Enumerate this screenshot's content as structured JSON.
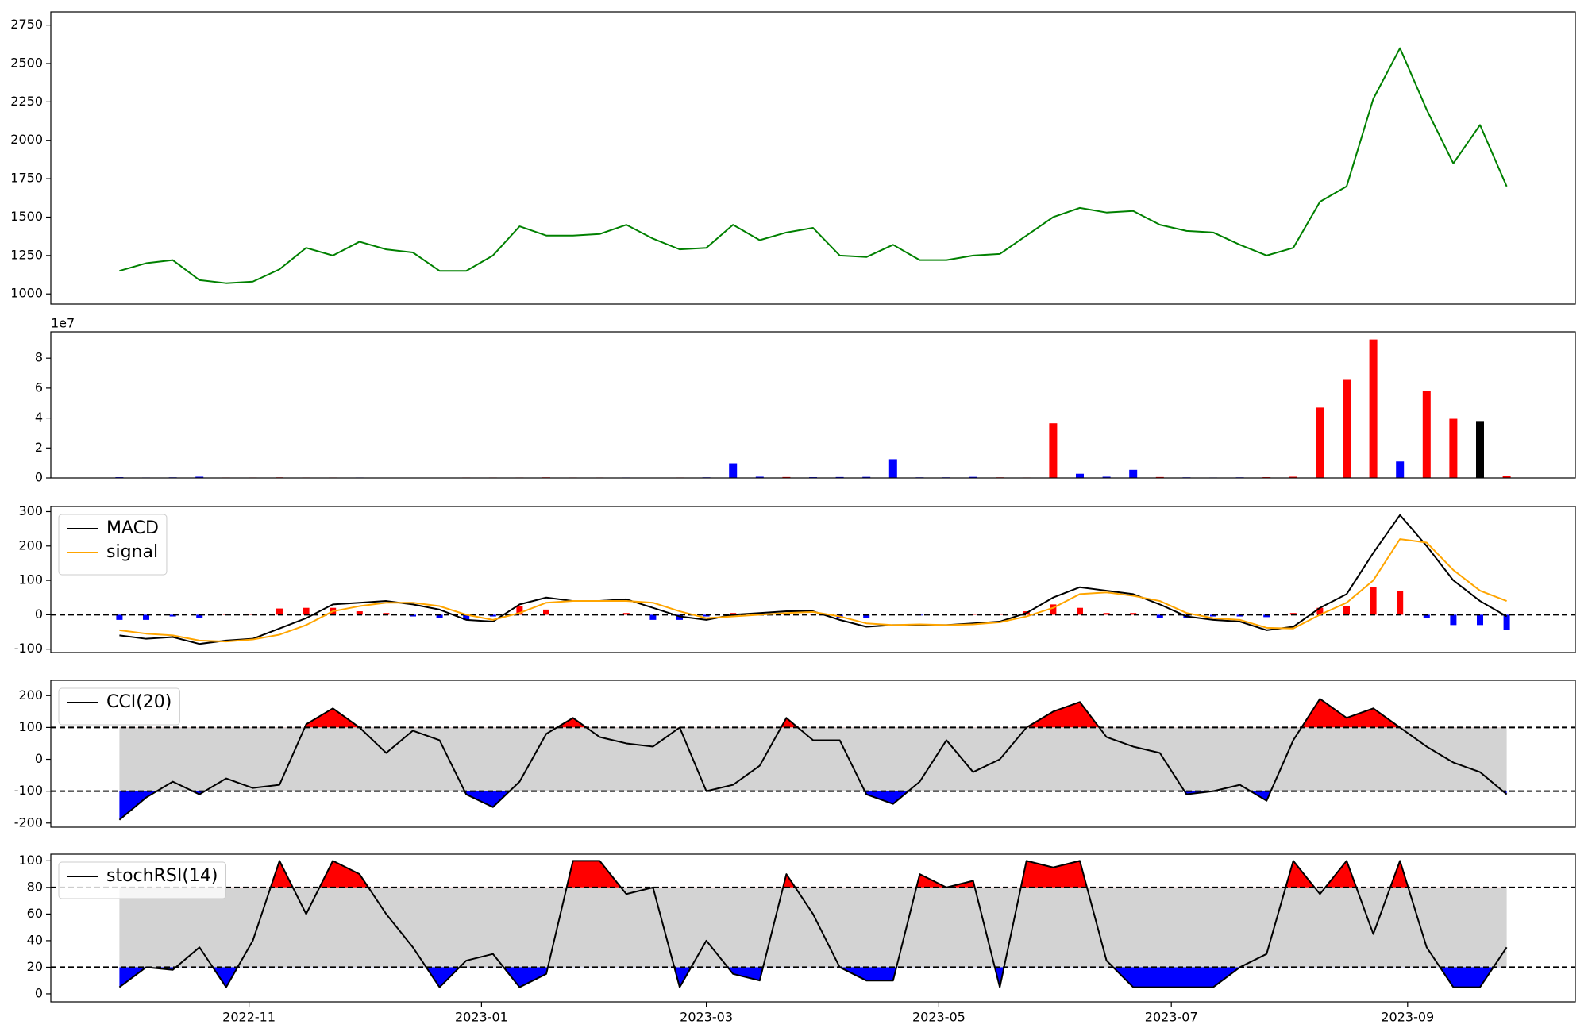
{
  "chart_data": [
    {
      "type": "line",
      "x": [
        19263,
        19270,
        19277,
        19284,
        19291,
        19298,
        19305,
        19312,
        19319,
        19326,
        19333,
        19340,
        19347,
        19354,
        19361,
        19368,
        19375,
        19382,
        19389,
        19396,
        19403,
        19410,
        19417,
        19424,
        19431,
        19438,
        19445,
        19452,
        19459,
        19466,
        19473,
        19480,
        19487,
        19494,
        19501,
        19508,
        19515,
        19522,
        19529,
        19536,
        19543,
        19550,
        19557,
        19564,
        19571,
        19578,
        19585,
        19592,
        19599,
        19606,
        19613,
        19620,
        19627
      ],
      "xlim": [
        19245,
        19645
      ],
      "series": [
        {
          "color": "#008000",
          "values": [
            1150,
            1200,
            1220,
            1090,
            1070,
            1080,
            1160,
            1300,
            1250,
            1340,
            1290,
            1270,
            1150,
            1150,
            1250,
            1440,
            1380,
            1380,
            1390,
            1450,
            1360,
            1290,
            1300,
            1450,
            1350,
            1400,
            1430,
            1250,
            1240,
            1320,
            1220,
            1220,
            1250,
            1260,
            1380,
            1500,
            1560,
            1530,
            1540,
            1450,
            1410,
            1400,
            1320,
            1250,
            1300,
            1600,
            1700,
            2270,
            2600,
            2200,
            1850,
            2100,
            1700
          ]
        }
      ],
      "ylim": [
        934,
        2836
      ],
      "yticks": [
        1000,
        1250,
        1500,
        1750,
        2000,
        2250,
        2500,
        2750
      ]
    },
    {
      "type": "bar",
      "x": [
        19263,
        19270,
        19277,
        19284,
        19291,
        19298,
        19305,
        19312,
        19319,
        19326,
        19333,
        19340,
        19347,
        19354,
        19361,
        19368,
        19375,
        19382,
        19389,
        19396,
        19403,
        19410,
        19417,
        19424,
        19431,
        19438,
        19445,
        19452,
        19459,
        19466,
        19473,
        19480,
        19487,
        19494,
        19501,
        19508,
        19515,
        19522,
        19529,
        19536,
        19543,
        19550,
        19557,
        19564,
        19571,
        19578,
        19585,
        19592,
        19599,
        19606,
        19613,
        19620,
        19627
      ],
      "xlim": [
        19245,
        19645
      ],
      "values": [
        500000,
        300000,
        400000,
        800000,
        300000,
        300000,
        400000,
        300000,
        300000,
        300000,
        200000,
        200000,
        200000,
        300000,
        300000,
        300000,
        400000,
        300000,
        300000,
        300000,
        200000,
        300000,
        400000,
        9800000,
        800000,
        600000,
        500000,
        600000,
        700000,
        12500000,
        400000,
        400000,
        700000,
        400000,
        300000,
        36500000,
        2800000,
        800000,
        5400000,
        600000,
        400000,
        300000,
        400000,
        500000,
        800000,
        47000000,
        65500000,
        92500000,
        11000000,
        58000000,
        39500000,
        38000000,
        1500000
      ],
      "colors": [
        "blue",
        "blue",
        "blue",
        "blue",
        "red",
        "red",
        "red",
        "red",
        "red",
        "blue",
        "red",
        "blue",
        "red",
        "red",
        "red",
        "red",
        "red",
        "red",
        "red",
        "blue",
        "red",
        "red",
        "blue",
        "blue",
        "blue",
        "red",
        "blue",
        "blue",
        "blue",
        "blue",
        "blue",
        "blue",
        "blue",
        "red",
        "red",
        "red",
        "blue",
        "blue",
        "blue",
        "red",
        "blue",
        "blue",
        "blue",
        "red",
        "red",
        "red",
        "red",
        "red",
        "blue",
        "red",
        "red",
        "black",
        "red"
      ],
      "ylim": [
        0,
        97600000
      ],
      "yticks": [
        {
          "value": 0,
          "label": "0"
        },
        {
          "value": 20000000,
          "label": "2"
        },
        {
          "value": 40000000,
          "label": "4"
        },
        {
          "value": 60000000,
          "label": "6"
        },
        {
          "value": 80000000,
          "label": "8"
        }
      ],
      "y_offset_label": "1e7"
    },
    {
      "type": "macd",
      "x": [
        19263,
        19270,
        19277,
        19284,
        19291,
        19298,
        19305,
        19312,
        19319,
        19326,
        19333,
        19340,
        19347,
        19354,
        19361,
        19368,
        19375,
        19382,
        19389,
        19396,
        19403,
        19410,
        19417,
        19424,
        19431,
        19438,
        19445,
        19452,
        19459,
        19466,
        19473,
        19480,
        19487,
        19494,
        19501,
        19508,
        19515,
        19522,
        19529,
        19536,
        19543,
        19550,
        19557,
        19564,
        19571,
        19578,
        19585,
        19592,
        19599,
        19606,
        19613,
        19620,
        19627
      ],
      "xlim": [
        19245,
        19645
      ],
      "series": [
        {
          "name": "MACD",
          "color": "#000000",
          "values": [
            -60,
            -70,
            -65,
            -85,
            -75,
            -70,
            -40,
            -10,
            30,
            35,
            40,
            30,
            15,
            -15,
            -20,
            30,
            50,
            40,
            40,
            45,
            20,
            -5,
            -15,
            0,
            5,
            10,
            10,
            -15,
            -35,
            -30,
            -30,
            -30,
            -25,
            -20,
            5,
            50,
            80,
            70,
            60,
            30,
            -5,
            -15,
            -20,
            -45,
            -35,
            20,
            60,
            180,
            290,
            200,
            100,
            40,
            -5
          ]
        },
        {
          "name": "signal",
          "color": "#ffa500",
          "values": [
            -45,
            -55,
            -60,
            -75,
            -78,
            -72,
            -58,
            -30,
            10,
            25,
            35,
            35,
            25,
            0,
            -15,
            5,
            35,
            40,
            40,
            40,
            35,
            10,
            -10,
            -5,
            0,
            5,
            8,
            -5,
            -25,
            -30,
            -28,
            -30,
            -28,
            -22,
            -5,
            20,
            60,
            65,
            55,
            40,
            5,
            -10,
            -15,
            -38,
            -40,
            0,
            35,
            100,
            220,
            210,
            130,
            70,
            40
          ]
        }
      ],
      "histogram": {
        "values": [
          -15,
          -15,
          -5,
          -10,
          3,
          2,
          18,
          20,
          20,
          10,
          5,
          -5,
          -10,
          -15,
          -5,
          25,
          15,
          0,
          0,
          5,
          -15,
          -15,
          -5,
          5,
          5,
          5,
          2,
          -10,
          -10,
          0,
          -2,
          0,
          3,
          2,
          10,
          30,
          20,
          5,
          5,
          -10,
          -10,
          -5,
          -5,
          -7,
          5,
          20,
          25,
          80,
          70,
          -10,
          -30,
          -30,
          -45
        ],
        "up_color": "red",
        "down_color": "blue"
      },
      "hlines": [
        0
      ],
      "ylim": [
        -110,
        315
      ],
      "yticks": [
        -100,
        0,
        100,
        200,
        300
      ],
      "legend": "upper left"
    },
    {
      "type": "oscillator",
      "x": [
        19263,
        19270,
        19277,
        19284,
        19291,
        19298,
        19305,
        19312,
        19319,
        19326,
        19333,
        19340,
        19347,
        19354,
        19361,
        19368,
        19375,
        19382,
        19389,
        19396,
        19403,
        19410,
        19417,
        19424,
        19431,
        19438,
        19445,
        19452,
        19459,
        19466,
        19473,
        19480,
        19487,
        19494,
        19501,
        19508,
        19515,
        19522,
        19529,
        19536,
        19543,
        19550,
        19557,
        19564,
        19571,
        19578,
        19585,
        19592,
        19599,
        19606,
        19613,
        19620,
        19627
      ],
      "xlim": [
        19245,
        19645
      ],
      "series": [
        {
          "name": "CCI(20)",
          "color": "#000000",
          "values": [
            -190,
            -120,
            -70,
            -110,
            -60,
            -90,
            -80,
            110,
            160,
            100,
            20,
            90,
            60,
            -110,
            -150,
            -70,
            80,
            130,
            70,
            50,
            40,
            100,
            -100,
            -80,
            -20,
            130,
            60,
            60,
            -110,
            -140,
            -70,
            60,
            -40,
            0,
            100,
            150,
            180,
            70,
            40,
            20,
            -110,
            -100,
            -80,
            -130,
            60,
            190,
            130,
            160,
            100,
            40,
            -10,
            -40,
            -110
          ]
        }
      ],
      "thresholds": [
        -100,
        100
      ],
      "band_color": "#d3d3d3",
      "above_color": "red",
      "below_color": "blue",
      "ylim": [
        -213,
        248
      ],
      "yticks": [
        -200,
        -100,
        0,
        100,
        200
      ],
      "legend": "upper left"
    },
    {
      "type": "oscillator",
      "x": [
        19263,
        19270,
        19277,
        19284,
        19291,
        19298,
        19305,
        19312,
        19319,
        19326,
        19333,
        19340,
        19347,
        19354,
        19361,
        19368,
        19375,
        19382,
        19389,
        19396,
        19403,
        19410,
        19417,
        19424,
        19431,
        19438,
        19445,
        19452,
        19459,
        19466,
        19473,
        19480,
        19487,
        19494,
        19501,
        19508,
        19515,
        19522,
        19529,
        19536,
        19543,
        19550,
        19557,
        19564,
        19571,
        19578,
        19585,
        19592,
        19599,
        19606,
        19613,
        19620,
        19627
      ],
      "xlim": [
        19245,
        19645
      ],
      "series": [
        {
          "name": "stochRSI(14)",
          "color": "#000000",
          "values": [
            5,
            20,
            18,
            35,
            5,
            40,
            100,
            60,
            100,
            90,
            60,
            35,
            5,
            25,
            30,
            5,
            15,
            100,
            100,
            75,
            80,
            5,
            40,
            15,
            10,
            90,
            60,
            20,
            10,
            10,
            90,
            80,
            85,
            5,
            100,
            95,
            100,
            25,
            5,
            5,
            5,
            5,
            20,
            30,
            100,
            75,
            100,
            45,
            100,
            35,
            5,
            5,
            35
          ]
        }
      ],
      "thresholds": [
        20,
        80
      ],
      "band_color": "#d3d3d3",
      "above_color": "red",
      "below_color": "blue",
      "ylim": [
        -6,
        105
      ],
      "yticks": [
        0,
        20,
        40,
        60,
        80,
        100
      ],
      "xticks": [
        {
          "value": 19297,
          "label": "2022-11"
        },
        {
          "value": 19358,
          "label": "2023-01"
        },
        {
          "value": 19417,
          "label": "2023-03"
        },
        {
          "value": 19478,
          "label": "2023-05"
        },
        {
          "value": 19539,
          "label": "2023-07"
        },
        {
          "value": 19601,
          "label": "2023-09"
        }
      ],
      "legend": "upper left"
    }
  ]
}
